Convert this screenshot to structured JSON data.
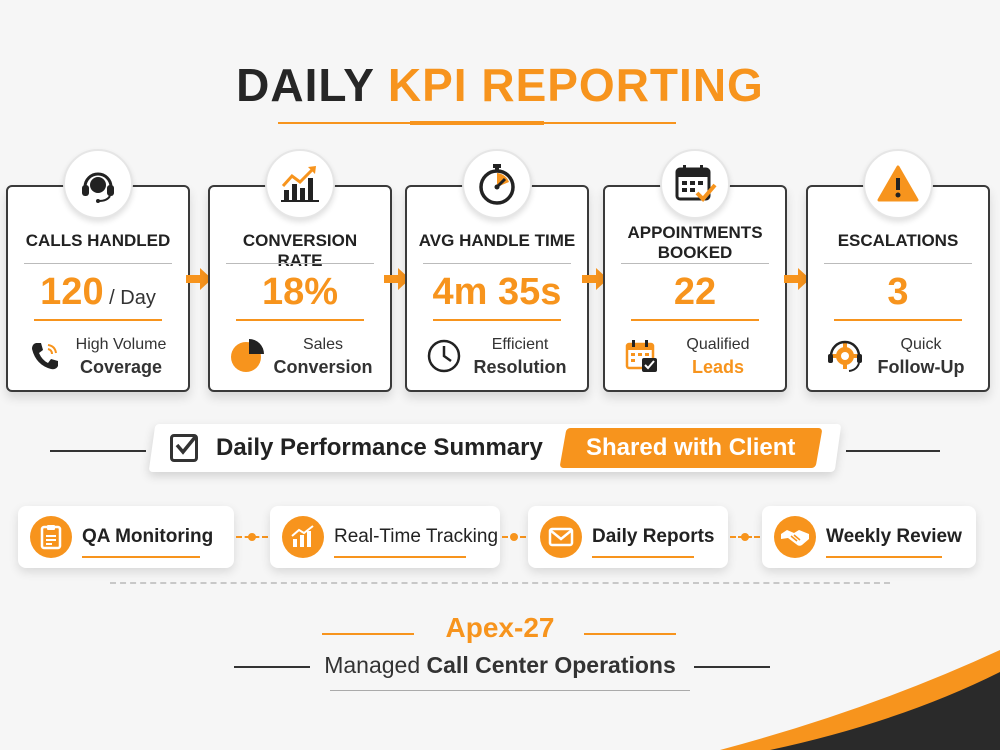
{
  "title": {
    "part1": "DAILY",
    "part2": "KPI REPORTING"
  },
  "kpis": [
    {
      "label": "CALLS HANDLED",
      "value": "120",
      "unit": " / Day",
      "foot1": "High Volume",
      "foot2": "Coverage",
      "icon": "headset-icon",
      "foot_icon": "phone-icon"
    },
    {
      "label": "CONVERSION RATE",
      "value": "18%",
      "unit": "",
      "foot1": "Sales",
      "foot2": "Conversion",
      "icon": "growth-chart-icon",
      "foot_icon": "pie-chart-icon"
    },
    {
      "label": "AVG HANDLE TIME",
      "value": "4m 35s",
      "unit": "",
      "foot1": "Efficient",
      "foot2": "Resolution",
      "icon": "stopwatch-icon",
      "foot_icon": "clock-icon"
    },
    {
      "label": "APPOINTMENTS BOOKED",
      "value": "22",
      "unit": "",
      "foot1": "Qualified",
      "foot2": "Leads",
      "icon": "calendar-check-icon",
      "foot_icon": "calendar-icon"
    },
    {
      "label": "ESCALATIONS",
      "value": "3",
      "unit": "",
      "foot1": "Quick",
      "foot2": "Follow-Up",
      "icon": "warning-icon",
      "foot_icon": "support-gear-icon"
    }
  ],
  "summary": {
    "text": "Daily Performance Summary",
    "badge": "Shared with Client"
  },
  "features": [
    {
      "label": "QA Monitoring",
      "icon": "clipboard-icon"
    },
    {
      "label": "Real-Time Tracking",
      "icon": "bar-chart-icon"
    },
    {
      "label": "Daily Reports",
      "icon": "envelope-icon"
    },
    {
      "label": "Weekly Review",
      "icon": "handshake-icon"
    }
  ],
  "brand": {
    "name": "Apex-27",
    "tag_prefix": "Managed",
    "tag_bold": "Call Center Operations"
  },
  "colors": {
    "accent": "#f7941d",
    "dark": "#262626",
    "background": "#f6f6f6"
  }
}
